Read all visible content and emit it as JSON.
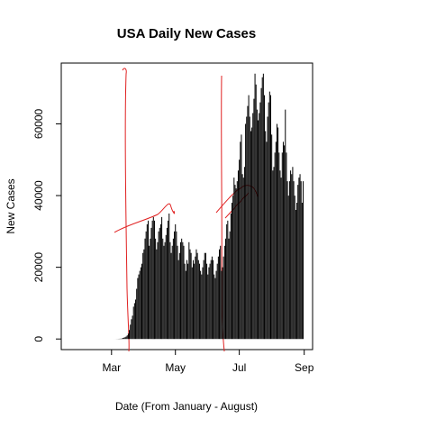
{
  "chart_data": {
    "type": "line",
    "title": "USA Daily New Cases",
    "x_label": "Date (From January - August)",
    "y_label": "New Cases",
    "color": "#000000",
    "x": [
      22,
      23,
      24,
      25,
      26,
      27,
      28,
      29,
      30,
      31,
      32,
      33,
      34,
      35,
      36,
      37,
      38,
      39,
      40,
      41,
      42,
      43,
      44,
      45,
      46,
      47,
      48,
      49,
      50,
      51,
      52,
      53,
      54,
      55,
      56,
      57,
      58,
      59,
      60,
      61,
      62,
      63,
      64,
      65,
      66,
      67,
      68,
      69,
      70,
      71,
      72,
      73,
      74,
      75,
      76,
      77,
      78,
      79,
      80,
      81,
      82,
      83,
      84,
      85,
      86,
      87,
      88,
      89,
      90,
      91,
      92,
      93,
      94,
      95,
      96,
      97,
      98,
      99,
      100,
      101,
      102,
      103,
      104,
      105,
      106,
      107,
      108,
      109,
      110,
      111,
      112,
      113,
      114,
      115,
      116,
      117,
      118,
      119,
      120,
      121,
      122,
      123,
      124,
      125,
      126,
      127,
      128,
      129,
      130,
      131,
      132,
      133,
      134,
      135,
      136,
      137,
      138,
      139,
      140,
      141,
      142,
      143,
      144,
      145,
      146,
      147,
      148,
      149,
      150,
      151,
      152,
      153,
      154,
      155,
      156,
      157,
      158,
      159,
      160,
      161,
      162,
      163,
      164,
      165,
      166,
      167,
      168,
      169,
      170,
      171,
      172,
      173,
      174,
      175,
      176,
      177,
      178,
      179,
      180,
      181,
      182,
      183,
      184,
      185,
      186,
      187,
      188,
      189,
      190,
      191,
      192,
      193,
      194,
      195,
      196,
      197,
      198,
      199,
      200,
      201,
      202,
      203,
      204,
      205,
      206,
      207,
      208,
      209,
      210,
      211,
      212,
      213,
      214,
      215,
      216,
      217,
      218,
      219,
      220,
      221,
      222,
      223,
      224,
      225,
      226,
      227,
      228,
      229,
      230,
      231,
      232,
      233,
      234,
      235,
      236,
      237,
      238,
      239,
      240,
      241,
      242,
      243,
      244
    ],
    "values": [
      1,
      0,
      1,
      0,
      1,
      0,
      0,
      0,
      1,
      1,
      1,
      0,
      0,
      1,
      0,
      0,
      0,
      0,
      0,
      0,
      0,
      0,
      0,
      0,
      0,
      0,
      0,
      0,
      0,
      0,
      0,
      0,
      0,
      0,
      0,
      0,
      0,
      0,
      0,
      0,
      3,
      5,
      7,
      10,
      20,
      30,
      60,
      80,
      100,
      150,
      300,
      400,
      500,
      700,
      1000,
      1500,
      2500,
      4000,
      5500,
      6500,
      9000,
      10000,
      11000,
      14000,
      17000,
      18000,
      19000,
      20000,
      21000,
      24000,
      25000,
      28000,
      30000,
      32000,
      33000,
      26000,
      28000,
      31000,
      33000,
      34000,
      33000,
      28000,
      25000,
      27000,
      30000,
      31000,
      32000,
      34000,
      28000,
      26000,
      27000,
      29000,
      31000,
      33000,
      35000,
      27000,
      24000,
      26000,
      28000,
      30000,
      32000,
      30000,
      26000,
      22000,
      24000,
      27000,
      28000,
      27000,
      26000,
      21000,
      19000,
      22000,
      21000,
      27000,
      25000,
      24000,
      20000,
      22000,
      21000,
      23000,
      25000,
      24000,
      22000,
      21000,
      19000,
      18000,
      20000,
      22000,
      24000,
      24000,
      21000,
      18000,
      20000,
      21000,
      22000,
      23000,
      22000,
      18000,
      17000,
      19000,
      21000,
      23000,
      25000,
      26000,
      19000,
      20000,
      23000,
      26000,
      28000,
      32000,
      33000,
      28000,
      30000,
      35000,
      38000,
      40000,
      45000,
      43000,
      42000,
      44000,
      47000,
      50000,
      55000,
      57000,
      46000,
      45000,
      48000,
      60000,
      62000,
      65000,
      68000,
      62000,
      58000,
      59000,
      63000,
      67000,
      74000,
      71000,
      64000,
      61000,
      63000,
      66000,
      70000,
      73000,
      74000,
      68000,
      58000,
      55000,
      62000,
      66000,
      69000,
      68000,
      57000,
      47000,
      48000,
      52000,
      55000,
      60000,
      59000,
      52000,
      47000,
      45000,
      52000,
      55000,
      54000,
      64000,
      52000,
      44000,
      40000,
      44000,
      47000,
      46000,
      48000,
      44000,
      40000,
      36000,
      38000,
      43000,
      45000,
      46000,
      44000,
      38000,
      44000
    ],
    "xlim": [
      13,
      253
    ],
    "xticks": [
      {
        "value": 61,
        "label": "Mar"
      },
      {
        "value": 122,
        "label": "May"
      },
      {
        "value": 183,
        "label": "Jul"
      },
      {
        "value": 245,
        "label": "Sep"
      }
    ],
    "ylim": [
      -2960,
      76960
    ],
    "yticks": [
      0,
      20000,
      40000,
      60000
    ]
  }
}
